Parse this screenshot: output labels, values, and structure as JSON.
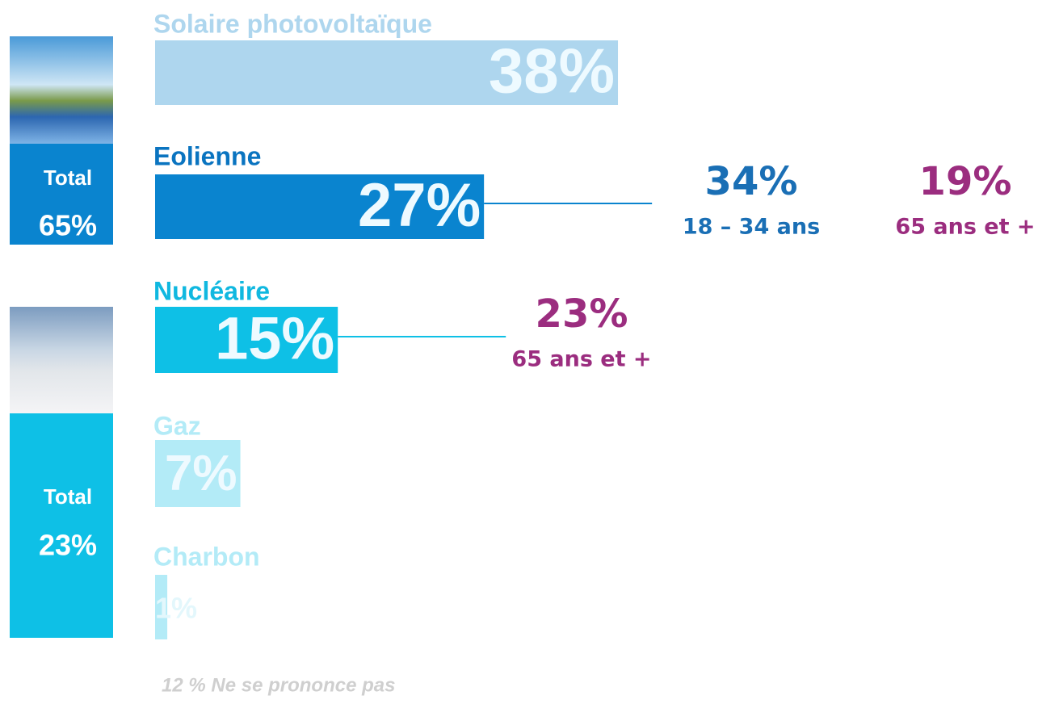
{
  "chart_data": {
    "type": "bar",
    "orientation": "horizontal",
    "categories": [
      "Solaire photovoltaïque",
      "Eolienne",
      "Nucléaire",
      "Gaz",
      "Charbon"
    ],
    "values": [
      38,
      27,
      15,
      7,
      1
    ],
    "value_labels": [
      "38%",
      "27%",
      "15%",
      "7%",
      "1%"
    ],
    "colors": [
      "#aed6ee",
      "#0a84cf",
      "#0ec0e6",
      "#b3ebf7",
      "#b3ebf7"
    ],
    "label_colors": [
      "#aed6ee",
      "#0a74c0",
      "#10b8e0",
      "#b3ebf7",
      "#b3ebf7"
    ],
    "details": [
      [],
      [
        {
          "value": 34,
          "label": "34%",
          "group": "18 – 34 ans",
          "color": "#1a6fb5"
        },
        {
          "value": 19,
          "label": "19%",
          "group": "65 ans et +",
          "color": "#9b2d7f"
        }
      ],
      [
        {
          "value": 23,
          "label": "23%",
          "group": "65 ans et +",
          "color": "#9b2d7f"
        }
      ],
      [],
      []
    ],
    "totals": [
      {
        "title": "Total",
        "value": 65,
        "label": "65%",
        "color": "#0a84cf"
      },
      {
        "title": "Total",
        "value": 23,
        "label": "23%",
        "color": "#0ec0e6"
      }
    ],
    "footnote": "12 % Ne se prononce pas"
  }
}
